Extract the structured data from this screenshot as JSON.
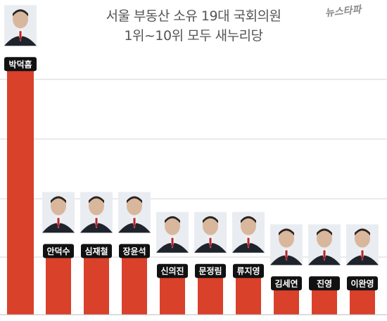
{
  "title_line1": "서울 부동산 소유 19대 국회의원",
  "title_line2": "1위~10위 모두 새누리당",
  "logo_text": "뉴스타파",
  "chart_data": {
    "type": "bar",
    "title": "서울 부동산 소유 19대 국회의원 1위~10위 모두 새누리당",
    "categories": [
      "박덕흠",
      "안덕수",
      "심재철",
      "장윤석",
      "신의진",
      "문정림",
      "류지영",
      "김세연",
      "진영",
      "이완영"
    ],
    "values": [
      100,
      25,
      25,
      25,
      17,
      17,
      17,
      12,
      12,
      12
    ],
    "value_note": "",
    "ylim": [
      0,
      106
    ],
    "grid": true,
    "bar_color": "#d9412b",
    "xlabel": "",
    "ylabel": ""
  },
  "colors": {
    "bar": "#d9412b",
    "label_bg": "#111111",
    "label_text": "#ffffff",
    "grid": "#d6d6d6",
    "title": "#555555"
  }
}
